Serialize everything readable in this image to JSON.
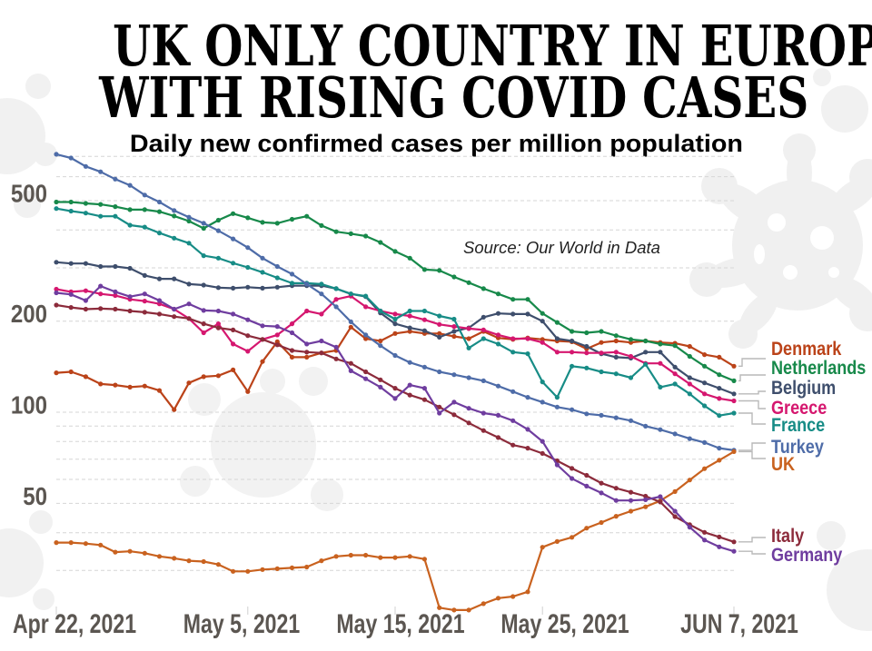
{
  "chart_data": {
    "type": "line",
    "title_lines": [
      "UK ONLY COUNTRY IN EUROPE",
      "WITH RISING COVID CASES"
    ],
    "subtitle": "Daily new confirmed cases per million population",
    "annotation": "Source: Our World in Data",
    "xlabel": "",
    "ylabel": "",
    "y_scale": "log",
    "ylim": [
      20,
      800
    ],
    "xlim": [
      0,
      46
    ],
    "grid": true,
    "legend": "right",
    "gridlines": [
      30,
      40,
      50,
      60,
      70,
      80,
      90,
      100,
      200,
      300,
      400,
      500,
      600,
      700
    ],
    "y_ticks": [
      {
        "value": 500,
        "label": "500"
      },
      {
        "value": 200,
        "label": "200"
      },
      {
        "value": 100,
        "label": "100"
      },
      {
        "value": 50,
        "label": "50"
      }
    ],
    "x_ticks": [
      {
        "day": 0,
        "label": "Apr 22, 2021"
      },
      {
        "day": 13,
        "label": "May 5, 2021"
      },
      {
        "day": 23,
        "label": "May 15, 2021"
      },
      {
        "day": 33,
        "label": "May 25, 2021"
      },
      {
        "day": 46,
        "label": "JUN 7, 2021"
      }
    ],
    "x": [
      0,
      1,
      2,
      3,
      4,
      5,
      6,
      7,
      8,
      9,
      10,
      11,
      12,
      13,
      14,
      15,
      16,
      17,
      18,
      19,
      20,
      21,
      22,
      23,
      24,
      25,
      26,
      27,
      28,
      29,
      30,
      31,
      32,
      33,
      34,
      35,
      36,
      37,
      38,
      39,
      40,
      41,
      42,
      43,
      44,
      45,
      46
    ],
    "series": [
      {
        "name": "Denmark",
        "color": "#bb4319",
        "values": [
          135,
          136,
          131,
          124,
          123,
          121,
          122,
          118,
          102,
          125,
          131,
          132,
          138,
          117,
          147,
          171,
          152,
          152,
          157,
          160,
          191,
          175,
          172,
          182,
          185,
          182,
          182,
          178,
          175,
          185,
          176,
          174,
          176,
          174,
          172,
          171,
          162,
          170,
          172,
          170,
          172,
          170,
          169,
          165,
          155,
          152,
          142
        ]
      },
      {
        "name": "Netherlands",
        "color": "#17894a",
        "values": [
          495,
          495,
          490,
          486,
          478,
          467,
          467,
          460,
          445,
          428,
          405,
          431,
          453,
          439,
          424,
          421,
          434,
          444,
          414,
          395,
          389,
          382,
          364,
          340,
          323,
          296,
          294,
          280,
          268,
          256,
          246,
          236,
          236,
          212,
          198,
          185,
          183,
          185,
          179,
          174,
          172,
          168,
          166,
          153,
          142,
          133,
          127
        ]
      },
      {
        "name": "Belgium",
        "color": "#3e4e6c",
        "values": [
          313,
          310,
          310,
          303,
          303,
          299,
          283,
          276,
          276,
          265,
          263,
          258,
          257,
          259,
          257,
          259,
          262,
          262,
          262,
          256,
          246,
          241,
          213,
          196,
          190,
          186,
          177,
          185,
          190,
          206,
          212,
          211,
          211,
          200,
          175,
          172,
          165,
          156,
          152,
          151,
          158,
          158,
          141,
          130,
          125,
          120,
          115
        ]
      },
      {
        "name": "Greece",
        "color": "#d5176f",
        "values": [
          255,
          250,
          252,
          246,
          243,
          236,
          233,
          228,
          219,
          204,
          183,
          196,
          168,
          159,
          174,
          180,
          196,
          216,
          211,
          236,
          242,
          223,
          216,
          211,
          208,
          202,
          195,
          192,
          189,
          187,
          180,
          175,
          175,
          170,
          158,
          158,
          157,
          157,
          158,
          153,
          145,
          145,
          134,
          124,
          115,
          111,
          109
        ]
      },
      {
        "name": "France",
        "color": "#178c86",
        "values": [
          471,
          462,
          455,
          444,
          444,
          415,
          409,
          391,
          376,
          362,
          329,
          323,
          311,
          301,
          290,
          278,
          267,
          267,
          265,
          256,
          246,
          242,
          216,
          203,
          216,
          216,
          208,
          203,
          163,
          175,
          168,
          158,
          156,
          126,
          112,
          142,
          140,
          136,
          134,
          130,
          144,
          121,
          124,
          115,
          105,
          97.5,
          99.3
        ]
      },
      {
        "name": "Turkey",
        "color": "#4e6ca8",
        "values": [
          712,
          692,
          649,
          623,
          589,
          562,
          522,
          495,
          464,
          441,
          421,
          398,
          374,
          350,
          323,
          303,
          286,
          265,
          246,
          223,
          199,
          180,
          166,
          154,
          146,
          141,
          136,
          133,
          130,
          127,
          122,
          117,
          112,
          108,
          104,
          102,
          98.8,
          97.7,
          95.9,
          93.8,
          89.9,
          87.6,
          84.8,
          81.8,
          79.4,
          76.1,
          74.9
        ]
      },
      {
        "name": "UK",
        "color": "#c9621f",
        "values": [
          37.1,
          37.1,
          36.8,
          36.4,
          34.5,
          34.7,
          34.2,
          33.4,
          32.9,
          32.3,
          32.1,
          31.4,
          29.8,
          29.8,
          30.2,
          30.4,
          30.6,
          30.8,
          32.3,
          33.4,
          33.7,
          33.7,
          33.1,
          33.1,
          33.4,
          32.7,
          22.6,
          22.2,
          22.2,
          23.3,
          24.3,
          24.6,
          25.5,
          35.8,
          37.4,
          38.6,
          41.4,
          43.2,
          45.3,
          47.1,
          48.7,
          51.0,
          54.7,
          59.7,
          65.1,
          69.4,
          74.1
        ]
      },
      {
        "name": "Italy",
        "color": "#8c2b3b",
        "values": [
          226,
          222,
          219,
          220,
          219,
          216,
          214,
          211,
          207,
          204,
          196,
          190,
          187,
          179,
          174,
          167,
          160,
          158,
          157,
          150,
          145,
          136,
          128,
          120,
          114,
          110,
          104,
          98.1,
          92.2,
          87.0,
          82.5,
          77.9,
          76.1,
          73.1,
          69.1,
          65.2,
          61.9,
          58.3,
          56.1,
          54.4,
          52.8,
          50.5,
          45.2,
          42.5,
          40.1,
          38.7,
          37.3
        ]
      },
      {
        "name": "Germany",
        "color": "#6f3d9f",
        "values": [
          248,
          245,
          234,
          261,
          250,
          241,
          246,
          234,
          219,
          228,
          217,
          216,
          211,
          202,
          193,
          192,
          183,
          168,
          172,
          164,
          137,
          129,
          121,
          111,
          123,
          120,
          99.3,
          108,
          103,
          99.3,
          97.7,
          93.8,
          87.8,
          80.1,
          67.0,
          60.4,
          57.0,
          54.1,
          51.1,
          51.1,
          51.4,
          52.6,
          47.1,
          41.7,
          37.8,
          35.9,
          34.7
        ]
      }
    ]
  }
}
